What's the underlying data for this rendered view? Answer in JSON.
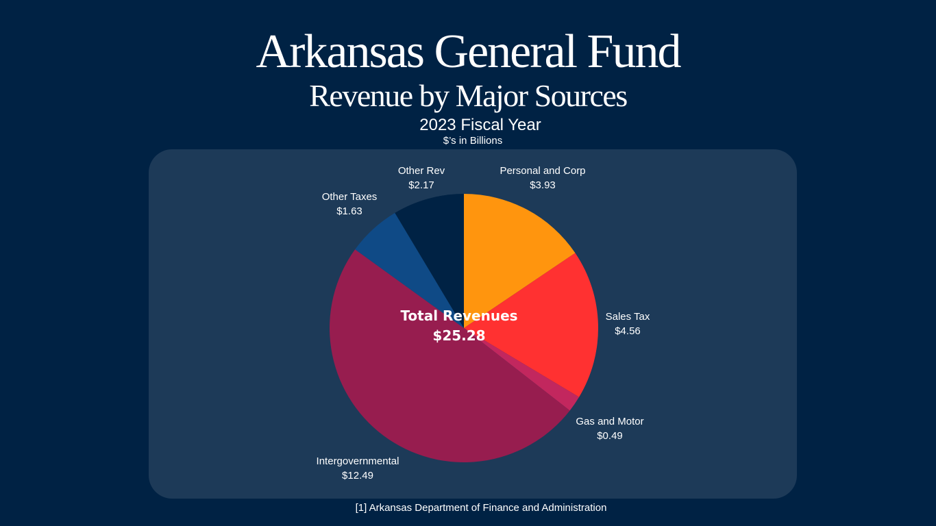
{
  "header": {
    "title": "Arkansas General Fund",
    "subtitle": "Revenue by Major Sources",
    "fiscal_year": "2023 Fiscal Year",
    "units": "$’s in Billions"
  },
  "center": {
    "label": "Total Revenues",
    "value": "$25.28"
  },
  "footer": {
    "source": "[1] Arkansas Department of Finance and Administration"
  },
  "chart_data": {
    "type": "pie",
    "title": "Arkansas General Fund Revenue by Major Sources",
    "subtitle": "2023 Fiscal Year",
    "units": "$’s in Billions",
    "total": 25.28,
    "start_angle": "12 o'clock",
    "direction": "clockwise",
    "slices": [
      {
        "name": "Personal and Corp",
        "value": 3.93,
        "label": "$3.93",
        "color": "#ff950e"
      },
      {
        "name": "Sales Tax",
        "value": 4.56,
        "label": "$4.56",
        "color": "#ff3131"
      },
      {
        "name": "Gas and Motor",
        "value": 0.49,
        "label": "$0.49",
        "color": "#c2275e"
      },
      {
        "name": "Intergovernmental",
        "value": 12.49,
        "label": "$12.49",
        "color": "#971d4f"
      },
      {
        "name": "Other Taxes",
        "value": 1.63,
        "label": "$1.63",
        "color": "#0f4a86"
      },
      {
        "name": "Other Rev",
        "value": 2.17,
        "label": "$2.17",
        "color": "#002244"
      }
    ]
  },
  "colors": {
    "background": "#002244",
    "panel": "#1d3a58",
    "text": "#ffffff"
  }
}
